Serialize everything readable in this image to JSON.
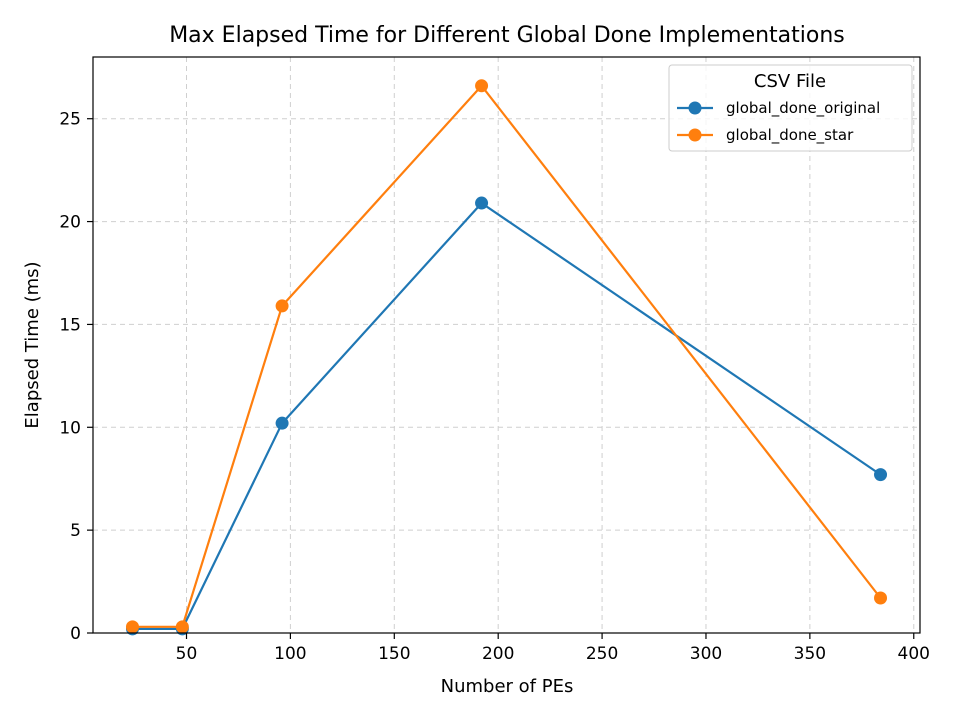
{
  "chart_data": {
    "type": "line",
    "title": "Max Elapsed Time for Different Global Done Implementations",
    "xlabel": "Number of PEs",
    "ylabel": "Elapsed Time (ms)",
    "xlim": [
      5,
      403
    ],
    "ylim": [
      0,
      28
    ],
    "xticks": [
      50,
      100,
      150,
      200,
      250,
      300,
      350,
      400
    ],
    "yticks": [
      0,
      5,
      10,
      15,
      20,
      25
    ],
    "grid": true,
    "legend": {
      "title": "CSV File",
      "placement": "top-right"
    },
    "series": [
      {
        "name": "global_done_original",
        "color": "#1f77b4",
        "x": [
          24,
          48,
          96,
          192,
          384
        ],
        "y": [
          0.2,
          0.2,
          10.2,
          20.9,
          7.7
        ]
      },
      {
        "name": "global_done_star",
        "color": "#ff7f0e",
        "x": [
          24,
          48,
          96,
          192,
          384
        ],
        "y": [
          0.3,
          0.3,
          15.9,
          26.6,
          1.7
        ]
      }
    ]
  }
}
